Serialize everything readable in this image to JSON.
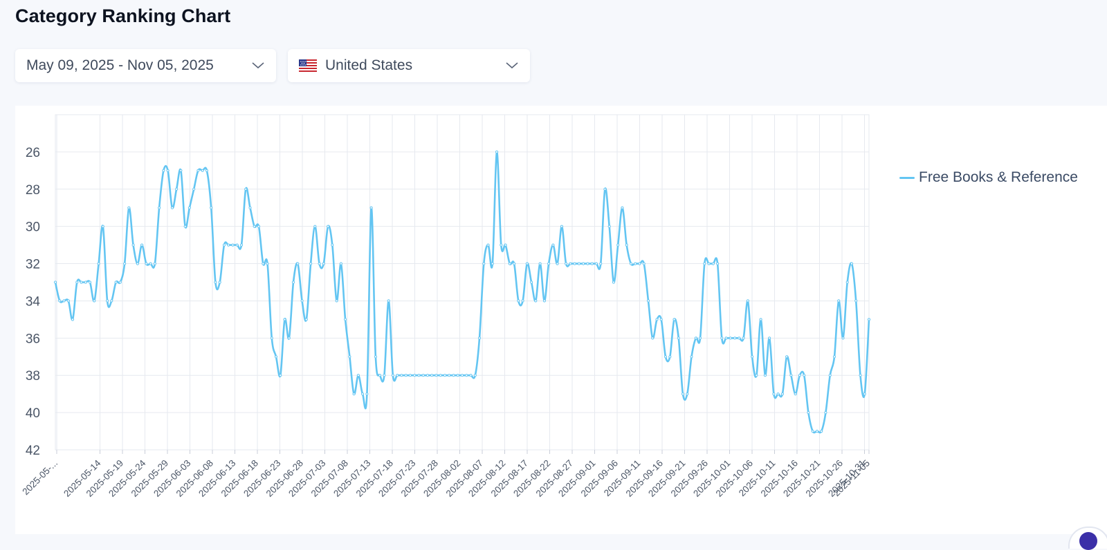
{
  "page": {
    "title": "Category Ranking Chart"
  },
  "filters": {
    "date_range": {
      "label": "May 09, 2025 - Nov 05, 2025",
      "icon": "chevron-down-icon"
    },
    "country": {
      "label": "United States",
      "flag_icon": "us-flag-icon",
      "icon": "chevron-down-icon"
    }
  },
  "colors": {
    "series": "#63c5f2",
    "grid": "#e6e9ef",
    "axis_text": "#4a5566"
  },
  "chart_data": {
    "type": "line",
    "title": "",
    "xlabel": "",
    "ylabel": "",
    "y_inverted": true,
    "ylim": [
      24,
      42
    ],
    "y_ticks": [
      26,
      28,
      30,
      32,
      34,
      36,
      38,
      40,
      42
    ],
    "x_tick_labels": [
      "2025-05-...",
      "2025-05-14",
      "2025-05-19",
      "2025-05-24",
      "2025-05-29",
      "2025-06-03",
      "2025-06-08",
      "2025-06-13",
      "2025-06-18",
      "2025-06-23",
      "2025-06-28",
      "2025-07-03",
      "2025-07-08",
      "2025-07-13",
      "2025-07-18",
      "2025-07-23",
      "2025-07-28",
      "2025-08-02",
      "2025-08-07",
      "2025-08-12",
      "2025-08-17",
      "2025-08-22",
      "2025-08-27",
      "2025-09-01",
      "2025-09-06",
      "2025-09-11",
      "2025-09-16",
      "2025-09-21",
      "2025-09-26",
      "2025-10-01",
      "2025-10-06",
      "2025-10-11",
      "2025-10-16",
      "2025-10-21",
      "2025-10-26",
      "2025-10-31",
      "2025-11-05"
    ],
    "legend": {
      "position": "right"
    },
    "series": [
      {
        "name": "Free Books & Reference",
        "values": [
          33,
          34,
          34,
          34,
          35,
          33,
          33,
          33,
          33,
          34,
          32,
          30,
          34,
          34,
          33,
          33,
          32,
          29,
          31,
          32,
          31,
          32,
          32,
          32,
          29,
          27,
          27,
          29,
          28,
          27,
          30,
          29,
          28,
          27,
          27,
          27,
          29,
          33,
          33,
          31,
          31,
          31,
          31,
          31,
          28,
          29,
          30,
          30,
          32,
          32,
          36,
          37,
          38,
          35,
          36,
          33,
          32,
          34,
          35,
          32,
          30,
          32,
          32,
          30,
          31,
          34,
          32,
          35,
          37,
          39,
          38,
          39,
          39,
          29,
          37,
          38,
          38,
          34,
          38,
          38,
          38,
          38,
          38,
          38,
          38,
          38,
          38,
          38,
          38,
          38,
          38,
          38,
          38,
          38,
          38,
          38,
          38,
          38,
          36,
          32,
          31,
          32,
          26,
          31,
          31,
          32,
          32,
          34,
          34,
          32,
          33,
          34,
          32,
          34,
          32,
          31,
          32,
          30,
          32,
          32,
          32,
          32,
          32,
          32,
          32,
          32,
          32,
          28,
          30,
          33,
          31,
          29,
          31,
          32,
          32,
          32,
          32,
          34,
          36,
          35,
          35,
          37,
          37,
          35,
          36,
          39,
          39,
          37,
          36,
          36,
          32,
          32,
          32,
          32,
          36,
          36,
          36,
          36,
          36,
          36,
          34,
          37,
          38,
          35,
          38,
          36,
          39,
          39,
          39,
          37,
          38,
          39,
          38,
          38,
          40,
          41,
          41,
          41,
          40,
          38,
          37,
          34,
          36,
          33,
          32,
          34,
          38,
          39,
          35
        ]
      }
    ]
  }
}
